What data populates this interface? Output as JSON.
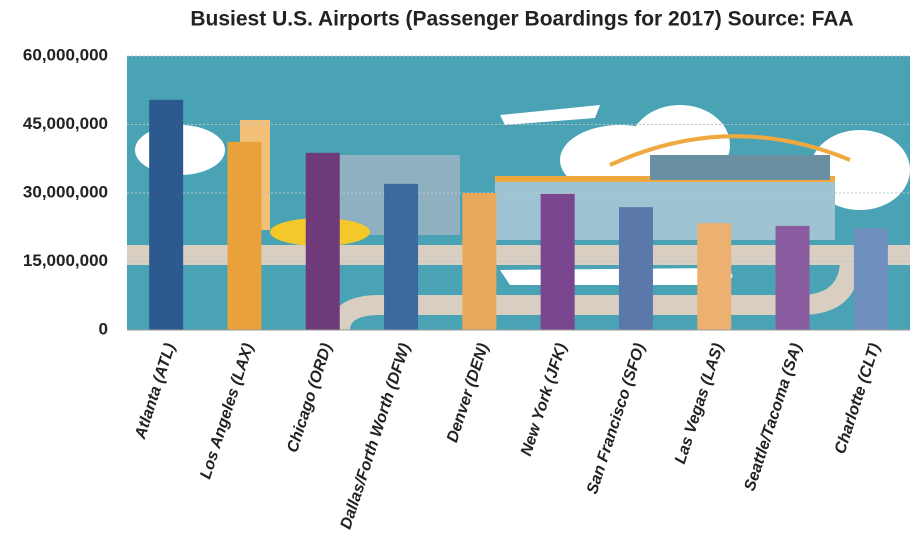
{
  "chart_data": {
    "type": "bar",
    "title": "Busiest U.S. Airports (Passenger Boardings for 2017)  Source: FAA",
    "categories": [
      "Atlanta (ATL)",
      "Los Angeles (LAX)",
      "Chicago (ORD)",
      "Dallas/Forth Worth (DFW)",
      "Denver (DEN)",
      "New York (JFK)",
      "San Francisco (SFO)",
      "Las Vegas (LAS)",
      "Seattle/Tacoma (SA)",
      "Charlotte (CLT)"
    ],
    "values": [
      50400000,
      41200000,
      38800000,
      32000000,
      30000000,
      29800000,
      26900000,
      23400000,
      22800000,
      22300000
    ],
    "colors": [
      "#2d5a8e",
      "#e9a23b",
      "#6e3a7a",
      "#3d6a9e",
      "#eaa85a",
      "#7a4690",
      "#5a78aa",
      "#ecb070",
      "#8a5ca0",
      "#6f8fbf"
    ],
    "ylim": [
      0,
      60000000
    ],
    "yticks": [
      {
        "value": 0,
        "label": "0"
      },
      {
        "value": 15000000,
        "label": "15,000,000"
      },
      {
        "value": 30000000,
        "label": "30,000,000"
      },
      {
        "value": 45000000,
        "label": "45,000,000"
      },
      {
        "value": 60000000,
        "label": "60,000,000"
      }
    ],
    "grid": true
  }
}
